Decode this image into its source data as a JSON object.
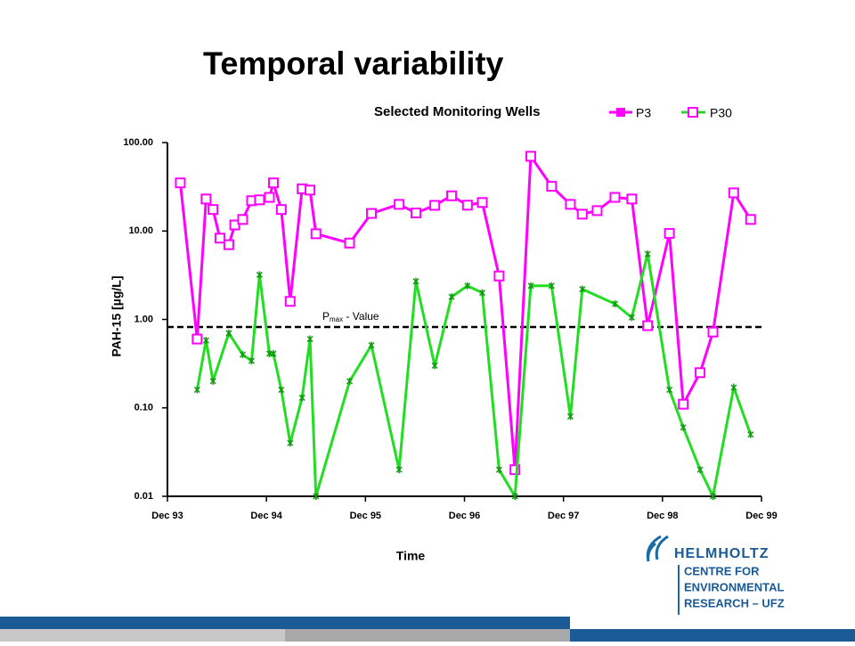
{
  "slide_title": "Temporal variability",
  "logo": {
    "name": "HELMHOLTZ",
    "lines": [
      "CENTRE FOR",
      "ENVIRONMENTAL",
      "RESEARCH – UFZ"
    ]
  },
  "chart_data": {
    "type": "line",
    "title": "Selected Monitoring Wells",
    "x_label": "Time",
    "y_label": "PAH-15 [µg/L]",
    "log_y": true,
    "annotation": {
      "parts": [
        "P",
        "max",
        " - Value"
      ],
      "value": 0.82
    },
    "xlim": [
      1993.92,
      1999.92
    ],
    "xticks": [
      {
        "value": 1993.92,
        "label": "Dec 93"
      },
      {
        "value": 1994.92,
        "label": "Dec 94"
      },
      {
        "value": 1995.92,
        "label": "Dec 95"
      },
      {
        "value": 1996.92,
        "label": "Dec 96"
      },
      {
        "value": 1997.92,
        "label": "Dec 97"
      },
      {
        "value": 1998.92,
        "label": "Dec 98"
      },
      {
        "value": 1999.92,
        "label": "Dec 99"
      }
    ],
    "ylim": [
      0.01,
      100
    ],
    "yticks": [
      {
        "value": 0.01,
        "label": "0.01"
      },
      {
        "value": 0.1,
        "label": "0.10"
      },
      {
        "value": 1,
        "label": "1.00"
      },
      {
        "value": 10,
        "label": "10.00"
      },
      {
        "value": 100,
        "label": "100.00"
      }
    ],
    "series": [
      {
        "name": "P3",
        "color": "#ff00ff",
        "x": [
          1994.05,
          1994.22,
          1994.31,
          1994.38,
          1994.45,
          1994.54,
          1994.6,
          1994.68,
          1994.77,
          1994.85,
          1994.95,
          1994.99,
          1995.07,
          1995.16,
          1995.28,
          1995.36,
          1995.42,
          1995.76,
          1995.98,
          1996.26,
          1996.43,
          1996.62,
          1996.79,
          1996.95,
          1997.1,
          1997.27,
          1997.43,
          1997.59,
          1997.8,
          1997.99,
          1998.11,
          1998.26,
          1998.44,
          1998.61,
          1998.77,
          1998.99,
          1999.13,
          1999.3,
          1999.43,
          1999.64,
          1999.81
        ],
        "values": [
          35,
          0.6,
          23,
          17.5,
          8.3,
          7,
          11.7,
          13.5,
          22,
          22.5,
          24,
          35,
          17.5,
          1.6,
          30,
          29,
          9.3,
          7.3,
          15.8,
          20,
          16,
          19.5,
          25,
          19.6,
          21,
          3.1,
          0.02,
          70,
          32,
          20,
          15.5,
          17,
          24,
          23,
          0.85,
          9.4,
          0.11,
          0.25,
          0.72,
          27,
          13.5
        ]
      },
      {
        "name": "P30",
        "color": "#22dd22",
        "x": [
          1994.22,
          1994.31,
          1994.38,
          1994.54,
          1994.68,
          1994.77,
          1994.85,
          1994.95,
          1994.99,
          1995.07,
          1995.16,
          1995.28,
          1995.36,
          1995.42,
          1995.76,
          1995.98,
          1996.26,
          1996.43,
          1996.62,
          1996.79,
          1996.95,
          1997.1,
          1997.27,
          1997.43,
          1997.59,
          1997.8,
          1997.99,
          1998.11,
          1998.44,
          1998.61,
          1998.77,
          1998.99,
          1999.13,
          1999.3,
          1999.43,
          1999.64,
          1999.81
        ],
        "values": [
          0.16,
          0.58,
          0.2,
          0.7,
          0.4,
          0.34,
          3.2,
          0.41,
          0.41,
          0.16,
          0.04,
          0.13,
          0.6,
          0.01,
          0.2,
          0.51,
          0.02,
          2.7,
          0.3,
          1.8,
          2.4,
          2.0,
          0.02,
          0.01,
          2.4,
          2.4,
          0.08,
          2.2,
          1.5,
          1.05,
          5.5,
          0.16,
          0.06,
          0.02,
          0.01,
          0.17,
          0.05
        ]
      }
    ]
  }
}
